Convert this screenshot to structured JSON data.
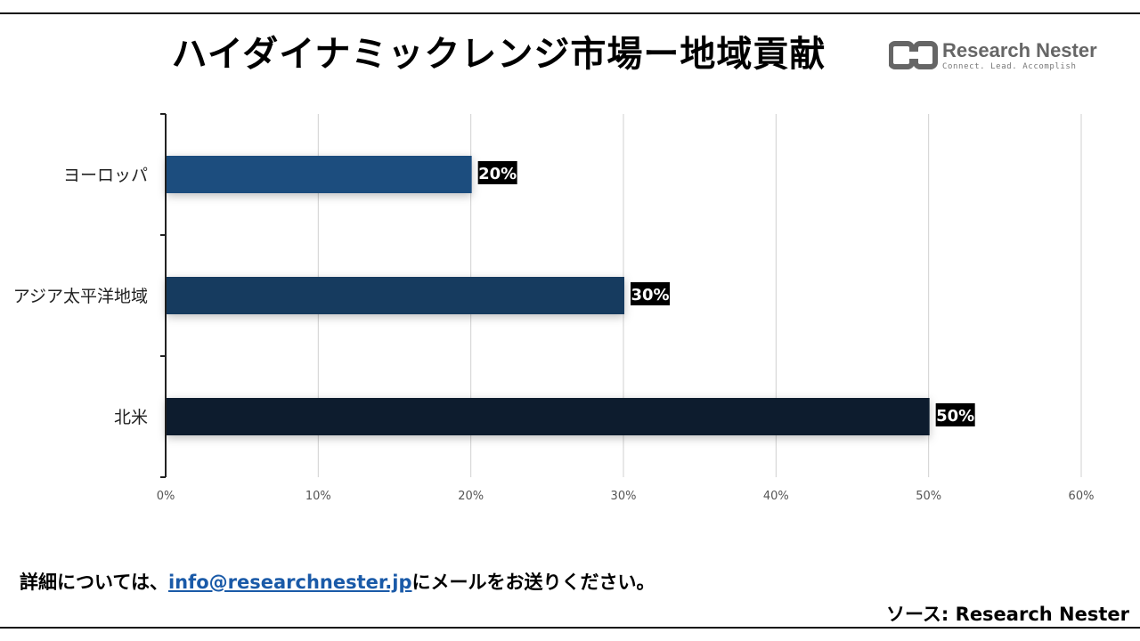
{
  "title": "ハイダイナミックレンジ市場ー地域貢献",
  "logo": {
    "name": "Research Nester",
    "tagline": "Connect. Lead. Accomplish"
  },
  "chart_data": {
    "type": "bar",
    "orientation": "horizontal",
    "categories": [
      "ヨーロッパ",
      "アジア太平洋地域",
      "北米"
    ],
    "values": [
      20,
      30,
      50
    ],
    "data_labels": [
      "20%",
      "30%",
      "50%"
    ],
    "colors": [
      "#1f4e7e",
      "#173a5e",
      "#0f1e2e"
    ],
    "xlim": [
      0,
      60
    ],
    "x_ticks": [
      "0%",
      "10%",
      "20%",
      "30%",
      "40%",
      "50%",
      "60%"
    ],
    "x_tick_values": [
      0,
      10,
      20,
      30,
      40,
      50,
      60
    ],
    "grid": true,
    "title": "",
    "xlabel": "",
    "ylabel": ""
  },
  "footer": {
    "prefix": "詳細については、",
    "email": "info@researchnester.jp",
    "suffix": "にメールをお送りください。"
  },
  "source": "ソース: Research Nester"
}
